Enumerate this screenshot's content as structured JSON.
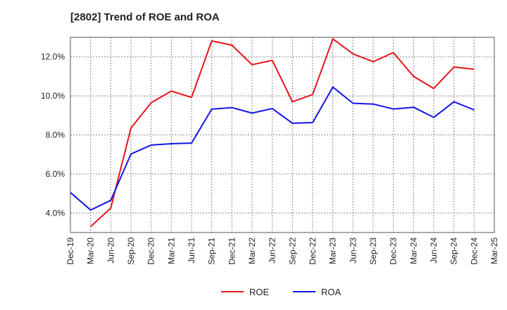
{
  "chart_data": {
    "type": "line",
    "title": "[2802]  Trend of ROE and ROA",
    "xlabel": "",
    "ylabel": "",
    "x": [
      "Dec-19",
      "Mar-20",
      "Jun-20",
      "Sep-20",
      "Dec-20",
      "Mar-21",
      "Jun-21",
      "Sep-21",
      "Dec-21",
      "Mar-22",
      "Jun-22",
      "Sep-22",
      "Dec-22",
      "Mar-23",
      "Jun-23",
      "Sep-23",
      "Dec-23",
      "Mar-24",
      "Jun-24",
      "Sep-24",
      "Dec-24",
      "Mar-25"
    ],
    "ylim": [
      3.0,
      13.0
    ],
    "yticks": [
      "4.0%",
      "6.0%",
      "8.0%",
      "10.0%",
      "12.0%"
    ],
    "ytick_values": [
      4.0,
      6.0,
      8.0,
      10.0,
      12.0
    ],
    "grid": true,
    "legend_position": "bottom-center",
    "series": [
      {
        "name": "ROE",
        "color": "#e8141e",
        "values": [
          null,
          3.3,
          4.25,
          8.35,
          9.65,
          10.25,
          9.92,
          12.82,
          12.6,
          11.6,
          11.82,
          9.7,
          10.07,
          12.92,
          12.15,
          11.75,
          12.22,
          11.0,
          10.38,
          11.48,
          11.37,
          null
        ]
      },
      {
        "name": "ROA",
        "color": "#1414e6",
        "values": [
          5.05,
          4.15,
          4.65,
          7.02,
          7.48,
          7.55,
          7.58,
          9.32,
          9.4,
          9.12,
          9.35,
          8.6,
          8.63,
          10.45,
          9.62,
          9.58,
          9.33,
          9.42,
          8.9,
          9.7,
          9.28,
          null
        ]
      }
    ]
  }
}
